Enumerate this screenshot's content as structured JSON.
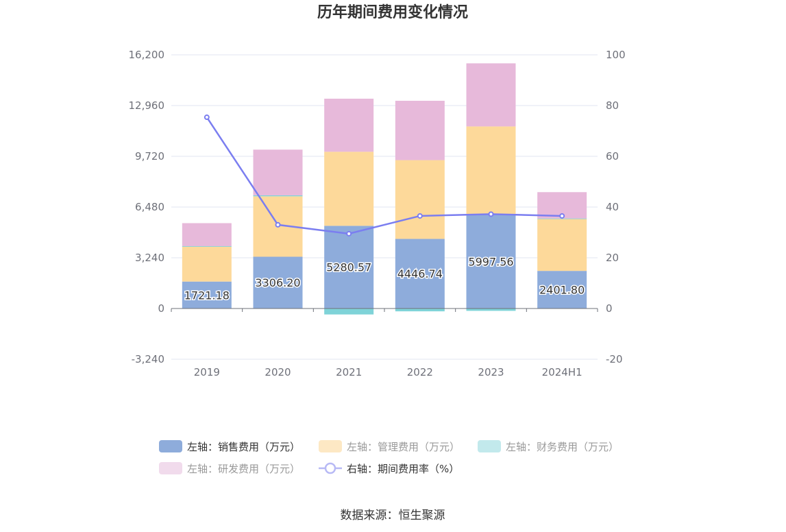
{
  "chart_data": {
    "type": "bar",
    "title": "历年期间费用变化情况",
    "categories": [
      "2019",
      "2020",
      "2021",
      "2022",
      "2023",
      "2024H1"
    ],
    "y_left": {
      "ticks": [
        "-3,240",
        "0",
        "3,240",
        "6,480",
        "9,720",
        "12,960",
        "16,200"
      ],
      "min": -3240,
      "max": 16200
    },
    "y_right": {
      "ticks": [
        "-20",
        "0",
        "20",
        "40",
        "60",
        "80",
        "100"
      ],
      "min": -20,
      "max": 100
    },
    "series": [
      {
        "name": "左轴：销售费用（万元）",
        "color": "#8eacdb",
        "axis": "left",
        "values": [
          1721.18,
          3306.2,
          5280.57,
          4446.74,
          5997.56,
          2401.8
        ],
        "labels": [
          "1721.18",
          "3306.20",
          "5280.57",
          "4446.74",
          "5997.56",
          "2401.80"
        ]
      },
      {
        "name": "左轴：管理费用（万元）",
        "color": "#fdd99a",
        "axis": "left",
        "values": [
          2220,
          3860,
          4730,
          5030,
          5630,
          3310
        ]
      },
      {
        "name": "左轴：财务费用（万元）",
        "color": "#7fd3d8",
        "axis": "left",
        "values": [
          40,
          60,
          -380,
          -180,
          -150,
          40
        ]
      },
      {
        "name": "左轴：研发费用（万元）",
        "color": "#e7b9da",
        "axis": "left",
        "values": [
          1470,
          2920,
          3390,
          3790,
          4030,
          1680
        ]
      },
      {
        "name": "右轴：期间费用率（%）",
        "color": "#7b7ef0",
        "axis": "right",
        "type": "line",
        "values": [
          75.4,
          33.0,
          29.5,
          36.5,
          37.2,
          36.5
        ]
      }
    ],
    "legend_position": "bottom",
    "grid": true
  },
  "source": "数据来源：恒生聚源"
}
